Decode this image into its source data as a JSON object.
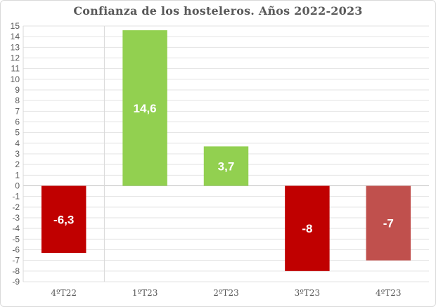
{
  "chart_data": {
    "type": "bar",
    "title": "Confianza de los hosteleros. Años 2022-2023",
    "categories": [
      "4ºT22",
      "1ºT23",
      "2ºT23",
      "3ºT23",
      "4ºT23"
    ],
    "values": [
      -6.3,
      14.6,
      3.7,
      -8,
      -7
    ],
    "data_labels": [
      "-6,3",
      "14,6",
      "3,7",
      "-8",
      "-7"
    ],
    "bar_colors": [
      "#c00000",
      "#92d050",
      "#92d050",
      "#c00000",
      "#c0504d"
    ],
    "ylim": [
      -9,
      15
    ],
    "ytick_step": 1,
    "grid": true,
    "legend": "none",
    "xlabel": "",
    "ylabel": ""
  }
}
